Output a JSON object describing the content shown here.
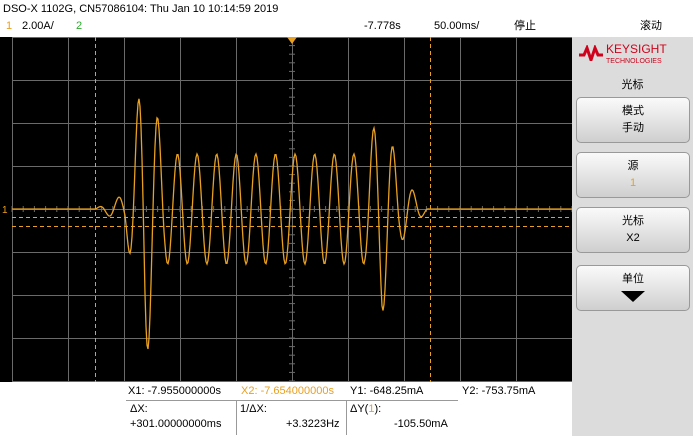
{
  "header": {
    "title": "DSO-X 1102G, CN57086104: Thu Jan 10 10:14:59 2019",
    "channel_1": "1",
    "channel_1_scale": "2.00A/",
    "channel_2": "2",
    "time_offset": "-7.778s",
    "time_scale": "50.00ms/",
    "run_state": "停止",
    "mode": "滚动"
  },
  "menu": {
    "brand": "KEYSIGHT",
    "brand_sub": "TECHNOLOGIES",
    "title": "光标",
    "softkeys": [
      {
        "label": "模式",
        "value": "手动"
      },
      {
        "label": "源",
        "value": "1"
      },
      {
        "label": "光标",
        "value": "X2"
      },
      {
        "label": "单位"
      }
    ]
  },
  "cursor_readout": {
    "x1": "X1: -7.955000000s",
    "x2": "X2: -7.654000000s",
    "y1": "Y1: -648.25mA",
    "y2": "Y2: -753.75mA",
    "delta_x_label": "ΔX:",
    "delta_x": "+301.00000000ms",
    "inv_delta_x_label": "1/ΔX:",
    "inv_delta_x": "+3.3223Hz",
    "delta_y_label_start": "ΔY(",
    "delta_y_source": "1",
    "delta_y_label_end": "):",
    "delta_y": "-105.50mA"
  },
  "plot": {
    "ground_marker": "1"
  }
}
